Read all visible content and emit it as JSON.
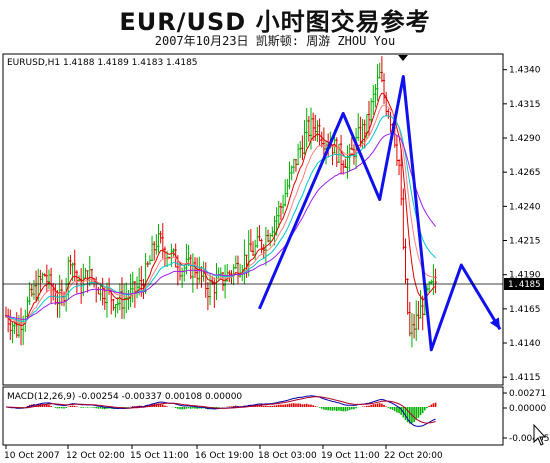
{
  "header": {
    "title": "EUR/USD  小时图交易参考",
    "subtitle": "2007年10月23日  凯斯顿: 周游 ZHOU You"
  },
  "main_chart": {
    "info_label": "EURUSD,H1  1.4188 1.4189 1.4183 1.4185",
    "current_price_label": "1.4185",
    "y_tick_labels": [
      "1.4340",
      "1.4315",
      "1.4290",
      "1.4265",
      "1.4240",
      "1.4215",
      "1.4190",
      "1.4165",
      "1.4140",
      "1.4115"
    ]
  },
  "macd_panel": {
    "label": "MACD(12,26,9) -0.00254 -0.00337 0.00108 0.00000",
    "y_tick_labels": [
      "0.00271",
      "0.00000",
      "-0.00455"
    ]
  },
  "x_axis": {
    "tick_labels": [
      "10 Oct 2007",
      "12 Oct 02:00",
      "15 Oct 11:00",
      "16 Oct 19:00",
      "18 Oct 03:00",
      "19 Oct 11:00",
      "22 Oct 20:00"
    ]
  },
  "colors": {
    "bull": "#00b000",
    "bear": "#e00000",
    "ma_cyan": "#00c8d0",
    "ma_red": "#e00000",
    "ma_purple": "#a020f0",
    "ma_blue": "#3040ff",
    "arrow": "#1010ee",
    "macd_line": "#0000aa",
    "macd_signal": "#b0002a"
  },
  "chart_data": {
    "type": "candlestick",
    "title": "",
    "xlabel": "",
    "ylabel": "",
    "ylim": [
      1.411,
      1.435
    ],
    "x_ticks": [
      "10 Oct 2007",
      "12 Oct 02:00",
      "15 Oct 11:00",
      "16 Oct 19:00",
      "18 Oct 03:00",
      "19 Oct 11:00",
      "22 Oct 20:00"
    ],
    "price_path": [
      [
        0,
        1.416
      ],
      [
        5,
        1.415
      ],
      [
        12,
        1.4175
      ],
      [
        18,
        1.419
      ],
      [
        22,
        1.4175
      ],
      [
        26,
        1.417
      ],
      [
        30,
        1.4205
      ],
      [
        34,
        1.418
      ],
      [
        38,
        1.419
      ],
      [
        44,
        1.418
      ],
      [
        52,
        1.417
      ],
      [
        58,
        1.4175
      ],
      [
        64,
        1.4185
      ],
      [
        70,
        1.4215
      ],
      [
        76,
        1.4205
      ],
      [
        82,
        1.4195
      ],
      [
        88,
        1.4195
      ],
      [
        94,
        1.418
      ],
      [
        100,
        1.4185
      ],
      [
        110,
        1.42
      ],
      [
        120,
        1.4215
      ],
      [
        128,
        1.424
      ],
      [
        134,
        1.427
      ],
      [
        140,
        1.4295
      ],
      [
        144,
        1.43
      ],
      [
        148,
        1.429
      ],
      [
        152,
        1.4285
      ],
      [
        156,
        1.4275
      ],
      [
        160,
        1.4275
      ],
      [
        164,
        1.429
      ],
      [
        168,
        1.43
      ],
      [
        172,
        1.4325
      ],
      [
        174,
        1.4335
      ],
      [
        176,
        1.432
      ],
      [
        180,
        1.43
      ],
      [
        183,
        1.427
      ],
      [
        186,
        1.418
      ],
      [
        188,
        1.4145
      ],
      [
        192,
        1.416
      ],
      [
        196,
        1.4175
      ],
      [
        200,
        1.4185
      ]
    ],
    "current_price": 1.4185,
    "pattern_arrow": [
      [
        118,
        1.4165
      ],
      [
        157,
        1.4308
      ],
      [
        174,
        1.4245
      ],
      [
        185,
        1.4335
      ],
      [
        198,
        1.4135
      ],
      [
        212,
        1.4197
      ],
      [
        230,
        1.415
      ]
    ],
    "macd": {
      "label": "MACD(12,26,9)",
      "values": [
        -0.00254,
        -0.00337,
        0.00108,
        0.0
      ],
      "ylim": [
        -0.00455,
        0.00271
      ]
    }
  }
}
